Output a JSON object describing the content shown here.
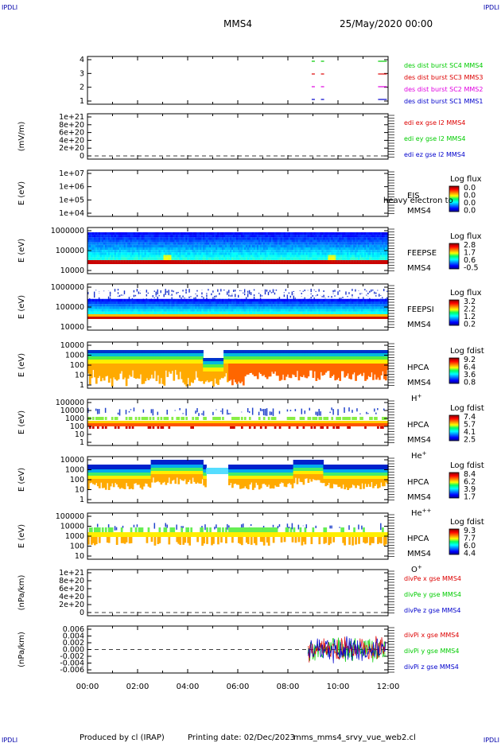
{
  "header": {
    "corner_left_top": "IPDLI",
    "corner_right_top": "IPDLI",
    "corner_left_bottom": "IPDLI",
    "corner_right_bottom": "IPDLI",
    "spacecraft": "MMS4",
    "datetime": "25/May/2020 00:00"
  },
  "footer": {
    "produced_by": "Produced by cl (IRAP)",
    "printing_date": "Printing date: 02/Dec/2023",
    "filename": "mms_mms4_srvy_vue_web2.cl"
  },
  "chart_data": {
    "type": "multi-panel time series / spectrogram",
    "x": {
      "tick_labels": [
        "00:00",
        "02:00",
        "04:00",
        "06:00",
        "08:00",
        "10:00",
        "12:00"
      ],
      "range_hours": [
        0,
        12
      ]
    },
    "colors": {
      "blue": "#0000cc",
      "magenta": "#e000e0",
      "red": "#dd0000",
      "green": "#00cc00"
    },
    "panels": [
      {
        "id": "burst",
        "type": "timeline",
        "ylabel": "",
        "yticks": [
          "4",
          "3",
          "2",
          "1"
        ],
        "series": [
          {
            "label": "des dist burst SC1 MMS1",
            "color": "blue",
            "row": 1,
            "segments": [
              [
                8.95,
                9.08
              ],
              [
                9.32,
                9.47
              ],
              [
                11.6,
                11.95
              ]
            ]
          },
          {
            "label": "des dist burst SC2 MMS2",
            "color": "magenta",
            "row": 2,
            "segments": [
              [
                8.95,
                9.08
              ],
              [
                9.32,
                9.47
              ],
              [
                11.6,
                11.95
              ]
            ]
          },
          {
            "label": "des dist burst SC3 MMS3",
            "color": "red",
            "row": 3,
            "segments": [
              [
                8.95,
                9.08
              ],
              [
                9.32,
                9.47
              ],
              [
                11.6,
                11.95
              ]
            ]
          },
          {
            "label": "des dist burst SC4 MMS4",
            "color": "green",
            "row": 4,
            "segments": [
              [
                8.95,
                9.08
              ],
              [
                9.32,
                9.47
              ],
              [
                11.6,
                11.95
              ]
            ]
          }
        ]
      },
      {
        "id": "edi",
        "type": "line",
        "ylabel": "(mV/m)",
        "yticks": [
          "1e+21",
          "8e+20",
          "6e+20",
          "4e+20",
          "2e+20",
          "0"
        ],
        "series": [
          {
            "label": "edi ex gse l2 MMS4",
            "color": "red"
          },
          {
            "label": "edi ey gse l2 MMS4",
            "color": "green"
          },
          {
            "label": "edi ez gse l2 MMS4",
            "color": "blue"
          }
        ]
      },
      {
        "id": "eis",
        "type": "spectrogram",
        "ylabel": "E (eV)",
        "yticks": [
          "1e+07",
          "1e+06",
          "1e+05",
          "1e+04"
        ],
        "instrument": "EIS",
        "spacecraft": "MMS4",
        "overlay": "heavy electron to",
        "colorbar": {
          "title": "Log flux",
          "ticks": [
            "0.0",
            "0.0",
            "0.0",
            "0.0"
          ]
        }
      },
      {
        "id": "feepse",
        "type": "spectrogram",
        "ylabel": "E (eV)",
        "yticks": [
          "1000000",
          "100000",
          "10000"
        ],
        "instrument": "FEEPSE",
        "spacecraft": "MMS4",
        "colorbar": {
          "title": "Log flux",
          "ticks": [
            "2.8",
            "1.7",
            "0.6",
            "-0.5"
          ]
        }
      },
      {
        "id": "feepsi",
        "type": "spectrogram",
        "ylabel": "E (eV)",
        "yticks": [
          "1000000",
          "100000",
          "10000"
        ],
        "instrument": "FEEPSI",
        "spacecraft": "MMS4",
        "colorbar": {
          "title": "Log flux",
          "ticks": [
            "3.2",
            "2.2",
            "1.2",
            "0.2"
          ]
        }
      },
      {
        "id": "hpca_h",
        "type": "spectrogram",
        "ylabel": "E (eV)",
        "yticks": [
          "10000",
          "1000",
          "100",
          "10",
          "1"
        ],
        "instrument": "HPCA",
        "spacecraft": "MMS4",
        "species": "H",
        "charge": "+",
        "colorbar": {
          "title": "Log fdist",
          "ticks": [
            "9.2",
            "6.4",
            "3.6",
            "0.8"
          ]
        }
      },
      {
        "id": "hpca_he",
        "type": "spectrogram",
        "ylabel": "E (eV)",
        "yticks": [
          "100000",
          "10000",
          "1000",
          "100",
          "10",
          "1"
        ],
        "instrument": "HPCA",
        "spacecraft": "MMS4",
        "species": "He",
        "charge": "+",
        "colorbar": {
          "title": "Log fdist",
          "ticks": [
            "7.4",
            "5.7",
            "4.1",
            "2.5"
          ]
        }
      },
      {
        "id": "hpca_hepp",
        "type": "spectrogram",
        "ylabel": "E (eV)",
        "yticks": [
          "10000",
          "1000",
          "100",
          "10",
          "1"
        ],
        "instrument": "HPCA",
        "spacecraft": "MMS4",
        "species": "He",
        "charge": "++",
        "colorbar": {
          "title": "Log fdist",
          "ticks": [
            "8.4",
            "6.2",
            "3.9",
            "1.7"
          ]
        }
      },
      {
        "id": "hpca_o",
        "type": "spectrogram",
        "ylabel": "E (eV)",
        "yticks": [
          "100000",
          "10000",
          "1000",
          "100",
          "10"
        ],
        "instrument": "HPCA",
        "spacecraft": "MMS4",
        "species": "O",
        "charge": "+",
        "colorbar": {
          "title": "Log fdist",
          "ticks": [
            "9.3",
            "7.7",
            "6.0",
            "4.4"
          ]
        }
      },
      {
        "id": "divpe",
        "type": "line",
        "ylabel": "(nPa/km)",
        "yticks": [
          "1e+21",
          "8e+20",
          "6e+20",
          "4e+20",
          "2e+20",
          "0"
        ],
        "series": [
          {
            "label": "divPe x gse MMS4",
            "color": "red"
          },
          {
            "label": "divPe y gse MMS4",
            "color": "green"
          },
          {
            "label": "divPe z gse MMS4",
            "color": "blue"
          }
        ]
      },
      {
        "id": "divpi",
        "type": "line",
        "ylabel": "(nPa/km)",
        "yticks": [
          "0.006",
          "0.004",
          "0.002",
          "0.000",
          "-0.002",
          "-0.004",
          "-0.006"
        ],
        "ylim": [
          -0.007,
          0.007
        ],
        "data_interval_hours": [
          8.8,
          11.9
        ],
        "series": [
          {
            "label": "divPi x gse MMS4",
            "color": "red"
          },
          {
            "label": "divPi y gse MMS4",
            "color": "green"
          },
          {
            "label": "divPi z gse MMS4",
            "color": "blue"
          }
        ]
      }
    ]
  }
}
